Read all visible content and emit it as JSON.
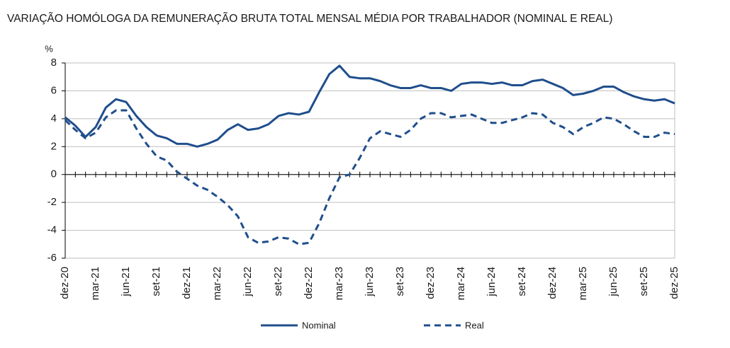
{
  "chart_data": {
    "type": "line",
    "title": "VARIAÇÃO HOMÓLOGA DA REMUNERAÇÃO BRUTA TOTAL MENSAL MÉDIA POR TRABALHADOR (NOMINAL E REAL)",
    "y_label": "%",
    "categories": [
      "dez-20",
      null,
      null,
      "mar-21",
      null,
      null,
      "jun-21",
      null,
      null,
      "set-21",
      null,
      null,
      "dez-21",
      null,
      null,
      "mar-22",
      null,
      null,
      "jun-22",
      null,
      null,
      "set-22",
      null,
      null,
      "dez-22",
      null,
      null,
      "mar-23",
      null,
      null,
      "jun-23",
      null,
      null,
      "set-23",
      null,
      null,
      "dez-23",
      null,
      null,
      "mar-24",
      null,
      null,
      "jun-24",
      null,
      null,
      "set-24",
      null,
      null,
      "dez-24",
      null,
      null,
      "mar-25",
      null,
      null,
      "jun-25",
      null,
      null,
      "set-25",
      null,
      null,
      "dez-25"
    ],
    "series": [
      {
        "name": "Nominal",
        "color": "#1f4e8c",
        "style": "solid",
        "values": [
          4.1,
          3.5,
          2.7,
          3.4,
          4.8,
          5.4,
          5.2,
          4.2,
          3.4,
          2.8,
          2.6,
          2.2,
          2.2,
          2.0,
          2.2,
          2.5,
          3.2,
          3.6,
          3.2,
          3.3,
          3.6,
          4.2,
          4.4,
          4.3,
          4.5,
          5.9,
          7.2,
          7.8,
          7.0,
          6.9,
          6.9,
          6.7,
          6.4,
          6.2,
          6.2,
          6.4,
          6.2,
          6.2,
          6.0,
          6.5,
          6.6,
          6.6,
          6.5,
          6.6,
          6.4,
          6.4,
          6.7,
          6.8,
          6.5,
          6.2,
          5.7,
          5.8,
          6.0,
          6.3,
          6.3,
          5.9,
          5.6,
          5.4,
          5.3,
          5.4,
          5.1
        ]
      },
      {
        "name": "Real",
        "color": "#1f4e8c",
        "style": "dashed",
        "values": [
          3.9,
          3.2,
          2.6,
          3.0,
          4.1,
          4.6,
          4.6,
          3.3,
          2.2,
          1.3,
          1.0,
          0.2,
          -0.3,
          -0.8,
          -1.1,
          -1.6,
          -2.2,
          -3.0,
          -4.5,
          -4.9,
          -4.8,
          -4.5,
          -4.6,
          -5.0,
          -4.9,
          -3.5,
          -1.7,
          -0.2,
          0.0,
          1.2,
          2.6,
          3.1,
          2.9,
          2.7,
          3.2,
          4.0,
          4.4,
          4.4,
          4.1,
          4.2,
          4.3,
          4.0,
          3.7,
          3.7,
          3.9,
          4.1,
          4.4,
          4.3,
          3.7,
          3.4,
          2.9,
          3.4,
          3.7,
          4.1,
          4.0,
          3.6,
          3.1,
          2.7,
          2.7,
          3.0,
          2.9
        ]
      }
    ],
    "ylim": [
      -6,
      8
    ],
    "yticks": [
      8,
      6,
      4,
      2,
      0,
      -2,
      -4,
      -6
    ],
    "grid": true,
    "legend": "bottom"
  }
}
